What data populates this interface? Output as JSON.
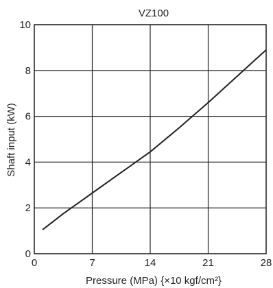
{
  "chart_data": {
    "type": "line",
    "title": "VZ100",
    "xlabel": "Pressure (MPa) {×10 kgf/cm²}",
    "ylabel": "Shaft input (kW)",
    "xlim": [
      0,
      28
    ],
    "ylim": [
      0,
      10
    ],
    "xticks": [
      "0",
      "7",
      "14",
      "21",
      "28"
    ],
    "yticks": [
      "0",
      "2",
      "4",
      "6",
      "8",
      "10"
    ],
    "grid": true,
    "series": [
      {
        "x": [
          1,
          3.5,
          7,
          10.5,
          14,
          17.5,
          21,
          24.5,
          28
        ],
        "y": [
          1.05,
          1.75,
          2.65,
          3.55,
          4.45,
          5.5,
          6.6,
          7.75,
          8.9
        ]
      }
    ]
  }
}
